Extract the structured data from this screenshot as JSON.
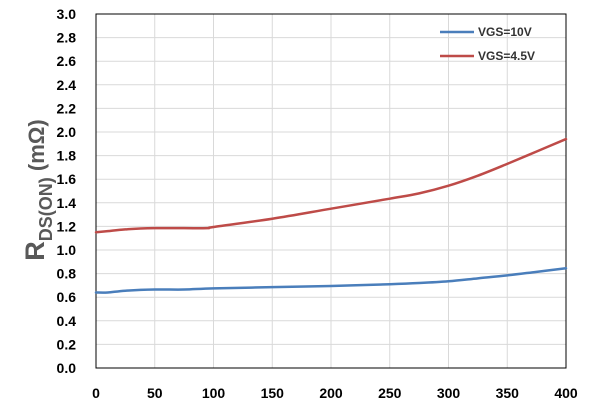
{
  "chart_data": {
    "type": "line",
    "title": "",
    "xlabel": "",
    "ylabel": {
      "main": "R",
      "subscript": "DS(ON)",
      "unit": " (mΩ)"
    },
    "xlim": [
      0,
      400
    ],
    "ylim": [
      0,
      3.0
    ],
    "x_ticks": [
      "0",
      "50",
      "100",
      "150",
      "200",
      "250",
      "300",
      "350",
      "400"
    ],
    "y_ticks": [
      "0.0",
      "0.2",
      "0.4",
      "0.6",
      "0.8",
      "1.0",
      "1.2",
      "1.4",
      "1.6",
      "1.8",
      "2.0",
      "2.2",
      "2.4",
      "2.6",
      "2.8",
      "3.0"
    ],
    "grid": true,
    "legend_position": "top-right",
    "series": [
      {
        "name": "VGS=10V",
        "color": "#4a7ebb",
        "x": [
          0,
          10,
          25,
          50,
          75,
          100,
          150,
          200,
          250,
          275,
          300,
          325,
          350,
          375,
          400
        ],
        "y": [
          0.64,
          0.64,
          0.655,
          0.665,
          0.665,
          0.675,
          0.685,
          0.695,
          0.71,
          0.72,
          0.735,
          0.76,
          0.785,
          0.815,
          0.845
        ]
      },
      {
        "name": "VGS=4.5V",
        "color": "#be4b48",
        "x": [
          0,
          10,
          25,
          50,
          75,
          95,
          100,
          150,
          200,
          250,
          275,
          300,
          325,
          350,
          375,
          400
        ],
        "y": [
          1.15,
          1.16,
          1.175,
          1.185,
          1.185,
          1.185,
          1.195,
          1.265,
          1.35,
          1.435,
          1.48,
          1.545,
          1.63,
          1.73,
          1.835,
          1.94
        ]
      }
    ]
  }
}
